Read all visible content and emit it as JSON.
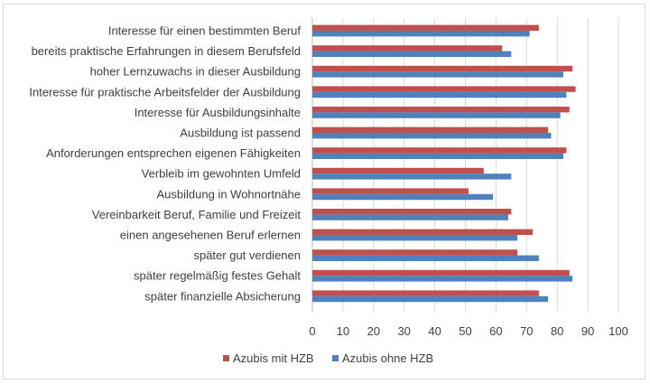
{
  "chart_data": {
    "type": "bar",
    "orientation": "horizontal",
    "categories": [
      "Interesse für einen bestimmten Beruf",
      "bereits praktische Erfahrungen in diesem Berufsfeld",
      "hoher Lernzuwachs in dieser Ausbildung",
      "Interesse für praktische Arbeitsfelder der Ausbildung",
      "Interesse für Ausbildungsinhalte",
      "Ausbildung ist passend",
      "Anforderungen entsprechen eigenen Fähigkeiten",
      "Verbleib im gewohnten Umfeld",
      "Ausbildung in Wohnortnähe",
      "Vereinbarkeit Beruf, Familie und Freizeit",
      "einen angesehenen Beruf erlernen",
      "später gut verdienen",
      "später regelmäßig festes Gehalt",
      "später finanzielle Absicherung"
    ],
    "series": [
      {
        "name": "Azubis mit HZB",
        "color": "#c0504d",
        "values": [
          74,
          62,
          85,
          86,
          84,
          77,
          83,
          56,
          51,
          65,
          72,
          67,
          84,
          74
        ]
      },
      {
        "name": "Azubis ohne HZB",
        "color": "#4f81bd",
        "values": [
          71,
          65,
          82,
          83,
          81,
          78,
          82,
          65,
          59,
          64,
          67,
          74,
          85,
          77
        ]
      }
    ],
    "xlim": [
      0,
      100
    ],
    "xticks": [
      0,
      10,
      20,
      30,
      40,
      50,
      60,
      70,
      80,
      90,
      100
    ],
    "grid": "vertical",
    "legend": "bottom"
  }
}
